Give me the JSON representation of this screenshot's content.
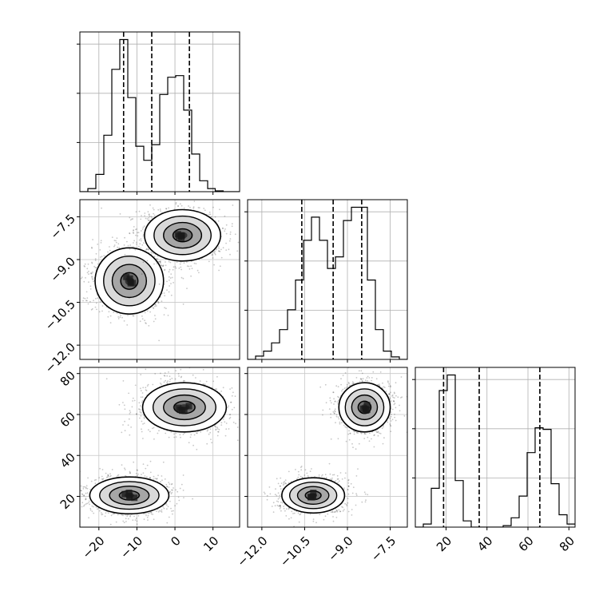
{
  "chart_data": {
    "type": "corner",
    "title": "",
    "grid": true,
    "parameters": [
      {
        "ticks": [
          -20,
          -10,
          0,
          10
        ],
        "tick_labels": [
          "−20",
          "−10",
          "0",
          "10"
        ],
        "range": [
          -25,
          17
        ]
      },
      {
        "ticks": [
          -12.0,
          -10.5,
          -9.0,
          -7.5
        ],
        "tick_labels": [
          "−12.0",
          "−10.5",
          "−9.0",
          "−7.5"
        ],
        "range": [
          -12.5,
          -6.9
        ]
      },
      {
        "ticks": [
          20,
          40,
          60,
          80
        ],
        "tick_labels": [
          "20",
          "40",
          "60",
          "80"
        ],
        "range": [
          5,
          83
        ]
      }
    ],
    "histograms": [
      {
        "param": 0,
        "bin_edges": [
          -25,
          -22.9,
          -20.8,
          -18.7,
          -16.6,
          -14.5,
          -12.4,
          -10.3,
          -8.2,
          -6.1,
          -4,
          -1.9,
          0.2,
          2.3,
          4.4,
          6.5,
          8.6,
          10.6,
          12.7,
          14.8,
          16.9
        ],
        "counts": [
          0,
          0.02,
          0.11,
          0.36,
          0.78,
          0.97,
          0.6,
          0.29,
          0.2,
          0.3,
          0.62,
          0.73,
          0.74,
          0.52,
          0.24,
          0.07,
          0.02,
          0.005,
          0,
          0
        ],
        "quantiles": [
          -13.5,
          -6.1,
          3.8
        ]
      },
      {
        "param": 1,
        "bin_edges": [
          -12.5,
          -12.22,
          -11.94,
          -11.66,
          -11.38,
          -11.1,
          -10.82,
          -10.54,
          -10.26,
          -9.98,
          -9.7,
          -9.42,
          -9.14,
          -8.86,
          -8.58,
          -8.3,
          -8.02,
          -7.74,
          -7.46,
          -7.18,
          -6.9
        ],
        "counts": [
          0,
          0.02,
          0.05,
          0.1,
          0.18,
          0.3,
          0.48,
          0.72,
          0.86,
          0.72,
          0.55,
          0.62,
          0.84,
          0.92,
          0.92,
          0.48,
          0.18,
          0.05,
          0.015,
          0
        ],
        "quantiles": [
          -10.6,
          -9.5,
          -8.5
        ]
      },
      {
        "param": 2,
        "bin_edges": [
          5,
          8.9,
          12.8,
          16.7,
          20.6,
          24.5,
          28.4,
          32.3,
          36.2,
          40.1,
          44,
          47.9,
          51.8,
          55.7,
          59.6,
          63.5,
          67.4,
          71.3,
          75.2,
          79.1,
          83
        ],
        "counts": [
          0,
          0.02,
          0.25,
          0.88,
          0.98,
          0.3,
          0.04,
          0,
          0,
          0,
          0,
          0.01,
          0.06,
          0.2,
          0.48,
          0.64,
          0.63,
          0.28,
          0.08,
          0.02
        ],
        "quantiles": [
          18.8,
          36.2,
          65.8
        ]
      }
    ],
    "pair_plots": [
      {
        "x_param": 0,
        "y_param": 1,
        "clusters": [
          {
            "center": [
              -12,
              -9.75
            ],
            "spread": [
              4.5,
              0.58
            ],
            "points": 1300
          },
          {
            "center": [
              2,
              -8.15
            ],
            "spread": [
              5,
              0.45
            ],
            "points": 1300
          }
        ]
      },
      {
        "x_param": 0,
        "y_param": 2,
        "clusters": [
          {
            "center": [
              -12,
              20.5
            ],
            "spread": [
              5.2,
              4.5
            ],
            "points": 1300
          },
          {
            "center": [
              2.5,
              63.5
            ],
            "spread": [
              5.5,
              6
            ],
            "points": 1300
          }
        ]
      },
      {
        "x_param": 1,
        "y_param": 2,
        "clusters": [
          {
            "center": [
              -10.2,
              20.5
            ],
            "spread": [
              0.55,
              4.3
            ],
            "points": 1300
          },
          {
            "center": [
              -8.4,
              63.5
            ],
            "spread": [
              0.45,
              6
            ],
            "points": 1300
          }
        ]
      }
    ]
  }
}
